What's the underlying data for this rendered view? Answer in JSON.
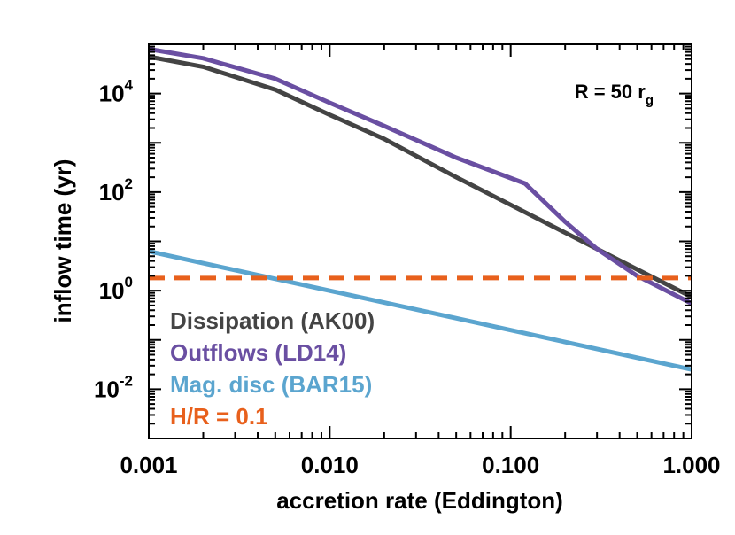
{
  "chart_data": {
    "type": "line",
    "xlabel": "accretion rate (Eddington)",
    "ylabel": "inflow time (yr)",
    "x_scale": "log",
    "y_scale": "log",
    "xlim": [
      0.001,
      1.0
    ],
    "ylim": [
      0.001,
      100000
    ],
    "x_ticks": [
      {
        "value": 0.001,
        "label": "0.001"
      },
      {
        "value": 0.01,
        "label": "0.010"
      },
      {
        "value": 0.1,
        "label": "0.100"
      },
      {
        "value": 1.0,
        "label": "1.000"
      }
    ],
    "y_ticks": [
      {
        "value": 0.01,
        "base": "10",
        "exp": "-2"
      },
      {
        "value": 1,
        "base": "10",
        "exp": "0"
      },
      {
        "value": 100,
        "base": "10",
        "exp": "2"
      },
      {
        "value": 10000,
        "base": "10",
        "exp": "4"
      }
    ],
    "annotation": {
      "main": "R = 50 r",
      "sub": "g"
    },
    "grid": false,
    "legend_position": "bottom-left",
    "series": [
      {
        "name": "Dissipation (AK00)",
        "color": "#444444",
        "style": "solid",
        "x": [
          0.001,
          0.002,
          0.005,
          0.01,
          0.02,
          0.05,
          0.1,
          0.2,
          0.5,
          1.0
        ],
        "y": [
          56000,
          35000,
          12000,
          3700,
          1200,
          200,
          55,
          15,
          2.7,
          0.75
        ]
      },
      {
        "name": "Outflows (LD14)",
        "color": "#6a4fa2",
        "style": "solid",
        "x": [
          0.001,
          0.002,
          0.005,
          0.01,
          0.02,
          0.05,
          0.12,
          0.2,
          0.3,
          0.5,
          1.0
        ],
        "y": [
          80000,
          52000,
          20000,
          6500,
          2200,
          500,
          150,
          25,
          7,
          2,
          0.55
        ]
      },
      {
        "name": "Mag. disc (BAR15)",
        "color": "#5ba5cf",
        "style": "solid",
        "x": [
          0.001,
          1.0
        ],
        "y": [
          6.3,
          0.025
        ]
      },
      {
        "name": "H/R = 0.1",
        "color": "#e8601c",
        "style": "dashed",
        "x": [
          0.001,
          1.0
        ],
        "y": [
          1.8,
          1.8
        ]
      }
    ]
  }
}
